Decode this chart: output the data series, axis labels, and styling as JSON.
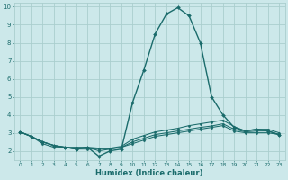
{
  "xlabel": "Humidex (Indice chaleur)",
  "ylabel": "",
  "bg_color": "#cce8ea",
  "grid_color": "#aacece",
  "line_color": "#1a6b6b",
  "xlim": [
    -0.5,
    23.5
  ],
  "ylim": [
    1.5,
    10.2
  ],
  "yticks": [
    2,
    3,
    4,
    5,
    6,
    7,
    8,
    9,
    10
  ],
  "xticks": [
    0,
    1,
    2,
    3,
    4,
    5,
    6,
    7,
    8,
    9,
    10,
    11,
    12,
    13,
    14,
    15,
    16,
    17,
    18,
    19,
    20,
    21,
    22,
    23
  ],
  "series": [
    {
      "x": [
        0,
        1,
        2,
        3,
        4,
        5,
        6,
        7,
        8,
        9,
        10,
        11,
        12,
        13,
        14,
        15,
        16,
        17,
        18,
        19,
        20,
        21,
        22,
        23
      ],
      "y": [
        3.05,
        2.8,
        2.5,
        2.3,
        2.2,
        2.1,
        2.2,
        1.7,
        2.0,
        2.1,
        4.7,
        6.5,
        8.5,
        9.6,
        9.95,
        9.5,
        8.0,
        5.0,
        4.0,
        3.3,
        3.1,
        3.2,
        3.1,
        2.9
      ]
    },
    {
      "x": [
        0,
        1,
        2,
        3,
        4,
        5,
        6,
        7,
        8,
        9,
        10,
        11,
        12,
        13,
        14,
        15,
        16,
        17,
        18,
        19,
        20,
        21,
        22,
        23
      ],
      "y": [
        3.05,
        2.8,
        2.5,
        2.3,
        2.2,
        2.2,
        2.2,
        2.15,
        2.15,
        2.25,
        2.65,
        2.85,
        3.05,
        3.15,
        3.25,
        3.4,
        3.5,
        3.6,
        3.7,
        3.35,
        3.1,
        3.2,
        3.2,
        3.0
      ]
    },
    {
      "x": [
        0,
        1,
        2,
        3,
        4,
        5,
        6,
        7,
        8,
        9,
        10,
        11,
        12,
        13,
        14,
        15,
        16,
        17,
        18,
        19,
        20,
        21,
        22,
        23
      ],
      "y": [
        3.05,
        2.8,
        2.4,
        2.2,
        2.2,
        2.1,
        2.1,
        2.1,
        2.1,
        2.2,
        2.5,
        2.7,
        2.9,
        3.0,
        3.1,
        3.2,
        3.3,
        3.38,
        3.5,
        3.2,
        3.05,
        3.1,
        3.1,
        2.9
      ]
    },
    {
      "x": [
        0,
        1,
        2,
        3,
        4,
        5,
        6,
        7,
        8,
        9,
        10,
        11,
        12,
        13,
        14,
        15,
        16,
        17,
        18,
        19,
        20,
        21,
        22,
        23
      ],
      "y": [
        3.05,
        2.8,
        2.5,
        2.3,
        2.2,
        2.1,
        2.2,
        2.0,
        2.1,
        2.2,
        2.4,
        2.6,
        2.8,
        2.9,
        3.0,
        3.1,
        3.2,
        3.3,
        3.4,
        3.1,
        3.0,
        3.0,
        3.0,
        2.9
      ]
    }
  ]
}
